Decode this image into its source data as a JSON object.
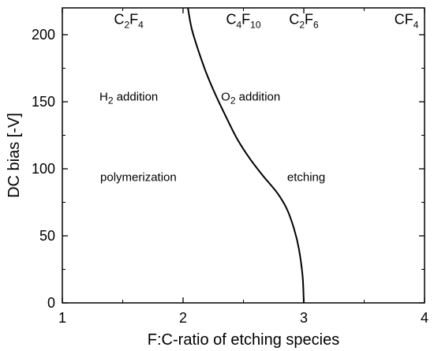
{
  "chart_data": {
    "type": "line",
    "xlabel": "F:C-ratio of etching species",
    "ylabel": "DC bias [-V]",
    "xlim": [
      1,
      4
    ],
    "ylim": [
      0,
      220
    ],
    "x_ticks": [
      1,
      2,
      3,
      4
    ],
    "y_ticks": [
      0,
      50,
      100,
      150,
      200
    ],
    "grid": false,
    "series": [
      {
        "points": [
          [
            3.0,
            0
          ],
          [
            2.99,
            20
          ],
          [
            2.96,
            40
          ],
          [
            2.92,
            55
          ],
          [
            2.86,
            70
          ],
          [
            2.78,
            82
          ],
          [
            2.66,
            95
          ],
          [
            2.55,
            108
          ],
          [
            2.45,
            122
          ],
          [
            2.36,
            138
          ],
          [
            2.27,
            155
          ],
          [
            2.19,
            172
          ],
          [
            2.12,
            190
          ],
          [
            2.07,
            205
          ],
          [
            2.04,
            220
          ]
        ]
      }
    ],
    "species_labels": [
      {
        "base": "C",
        "n1": "2",
        "mid": "F",
        "n2": "4",
        "x": 1.55,
        "y": 208
      },
      {
        "base": "C",
        "n1": "4",
        "mid": "F",
        "n2": "10",
        "x": 2.5,
        "y": 208
      },
      {
        "base": "C",
        "n1": "2",
        "mid": "F",
        "n2": "6",
        "x": 3.0,
        "y": 208
      },
      {
        "base": "CF",
        "n1": "",
        "mid": "",
        "n2": "4",
        "x": 3.85,
        "y": 208
      }
    ],
    "annotations": [
      {
        "pre": "H",
        "sub": "2",
        "post": " addition",
        "x": 1.55,
        "y": 151
      },
      {
        "pre": "O",
        "sub": "2",
        "post": " addition",
        "x": 2.56,
        "y": 151
      },
      {
        "pre": "polymerization",
        "sub": "",
        "post": "",
        "x": 1.63,
        "y": 91
      },
      {
        "pre": "etching",
        "sub": "",
        "post": "",
        "x": 3.02,
        "y": 91
      }
    ]
  }
}
